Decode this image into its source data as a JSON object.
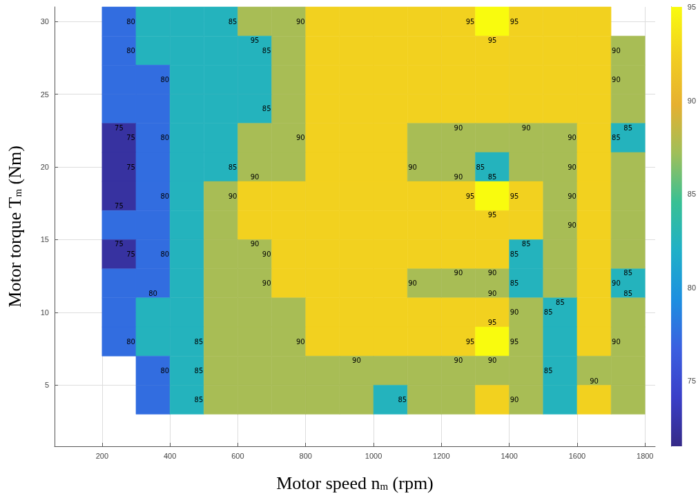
{
  "chart_data": {
    "type": "heatmap",
    "xlabel": "Motor speed n$_{m}$ (rpm)",
    "ylabel": "Motor torque T$_{m}$ (Nm)",
    "x": [
      250,
      350,
      450,
      550,
      650,
      750,
      850,
      950,
      1050,
      1150,
      1250,
      1350,
      1450,
      1550,
      1650,
      1750
    ],
    "y": [
      30,
      28,
      26,
      24,
      22,
      20,
      18,
      16,
      14,
      12,
      10,
      8,
      6,
      4
    ],
    "cells": [
      [
        77.5,
        82.5,
        82.5,
        82.5,
        87.5,
        87.5,
        92.5,
        92.5,
        92.5,
        92.5,
        92.5,
        95,
        92.5,
        92.5,
        92.5,
        null
      ],
      [
        77.5,
        82.5,
        82.5,
        82.5,
        82.5,
        87.5,
        92.5,
        92.5,
        92.5,
        92.5,
        92.5,
        92.5,
        92.5,
        92.5,
        92.5,
        87.5
      ],
      [
        77.5,
        77.5,
        82.5,
        82.5,
        82.5,
        87.5,
        92.5,
        92.5,
        92.5,
        92.5,
        92.5,
        92.5,
        92.5,
        92.5,
        92.5,
        87.5
      ],
      [
        77.5,
        77.5,
        82.5,
        82.5,
        82.5,
        87.5,
        92.5,
        92.5,
        92.5,
        92.5,
        92.5,
        92.5,
        92.5,
        92.5,
        92.5,
        87.5
      ],
      [
        72.5,
        77.5,
        82.5,
        82.5,
        87.5,
        87.5,
        92.5,
        92.5,
        92.5,
        87.5,
        87.5,
        87.5,
        87.5,
        87.5,
        92.5,
        82.5
      ],
      [
        72.5,
        77.5,
        82.5,
        82.5,
        87.5,
        87.5,
        92.5,
        92.5,
        92.5,
        87.5,
        87.5,
        82.5,
        87.5,
        87.5,
        92.5,
        87.5
      ],
      [
        72.5,
        77.5,
        82.5,
        87.5,
        92.5,
        92.5,
        92.5,
        92.5,
        92.5,
        92.5,
        92.5,
        95,
        92.5,
        87.5,
        92.5,
        87.5
      ],
      [
        77.5,
        77.5,
        82.5,
        87.5,
        92.5,
        92.5,
        92.5,
        92.5,
        92.5,
        92.5,
        92.5,
        92.5,
        92.5,
        87.5,
        92.5,
        87.5
      ],
      [
        72.5,
        77.5,
        82.5,
        87.5,
        87.5,
        92.5,
        92.5,
        92.5,
        92.5,
        92.5,
        92.5,
        92.5,
        82.5,
        87.5,
        92.5,
        87.5
      ],
      [
        77.5,
        77.5,
        82.5,
        87.5,
        87.5,
        92.5,
        92.5,
        92.5,
        92.5,
        87.5,
        87.5,
        87.5,
        82.5,
        87.5,
        92.5,
        82.5
      ],
      [
        77.5,
        82.5,
        82.5,
        87.5,
        87.5,
        87.5,
        92.5,
        92.5,
        92.5,
        92.5,
        92.5,
        92.5,
        87.5,
        82.5,
        92.5,
        87.5
      ],
      [
        77.5,
        82.5,
        82.5,
        87.5,
        87.5,
        87.5,
        92.5,
        92.5,
        92.5,
        92.5,
        92.5,
        95,
        87.5,
        82.5,
        92.5,
        87.5
      ],
      [
        null,
        77.5,
        82.5,
        87.5,
        87.5,
        87.5,
        87.5,
        87.5,
        87.5,
        87.5,
        87.5,
        87.5,
        87.5,
        82.5,
        87.5,
        87.5
      ],
      [
        null,
        77.5,
        82.5,
        87.5,
        87.5,
        87.5,
        87.5,
        87.5,
        82.5,
        87.5,
        87.5,
        92.5,
        87.5,
        82.5,
        92.5,
        87.5
      ]
    ],
    "xlim": [
      60,
      1830
    ],
    "xticks": [
      200,
      400,
      600,
      800,
      1000,
      1200,
      1400,
      1600,
      1800
    ],
    "ylim": [
      0.8,
      31
    ],
    "yticks": [
      5,
      10,
      15,
      20,
      25,
      30
    ],
    "clim": [
      71.5,
      95
    ],
    "cticks": [
      75,
      80,
      85,
      90,
      95
    ],
    "grid": true,
    "annotations": [
      "80",
      "85",
      "80",
      "90",
      "95",
      "90",
      "75",
      "80",
      "85",
      "90",
      "90",
      "90",
      "85",
      "85",
      "90",
      "75",
      "95",
      "95",
      "90",
      "95",
      "90",
      "85",
      "80",
      "75",
      "95",
      "90",
      "90",
      "85",
      "85",
      "75",
      "80",
      "85",
      "90",
      "90",
      "90",
      "85",
      "95",
      "85",
      "90",
      "95",
      "95",
      "90",
      "85",
      "75",
      "80",
      "90",
      "85",
      "90",
      "95",
      "95",
      "90",
      "90",
      "75",
      "80",
      "90",
      "90",
      "85",
      "90",
      "90",
      "90",
      "85",
      "85",
      "80",
      "85",
      "85",
      "85",
      "90",
      "90",
      "85",
      "80",
      "85",
      "90",
      "90",
      "90",
      "90"
    ]
  }
}
